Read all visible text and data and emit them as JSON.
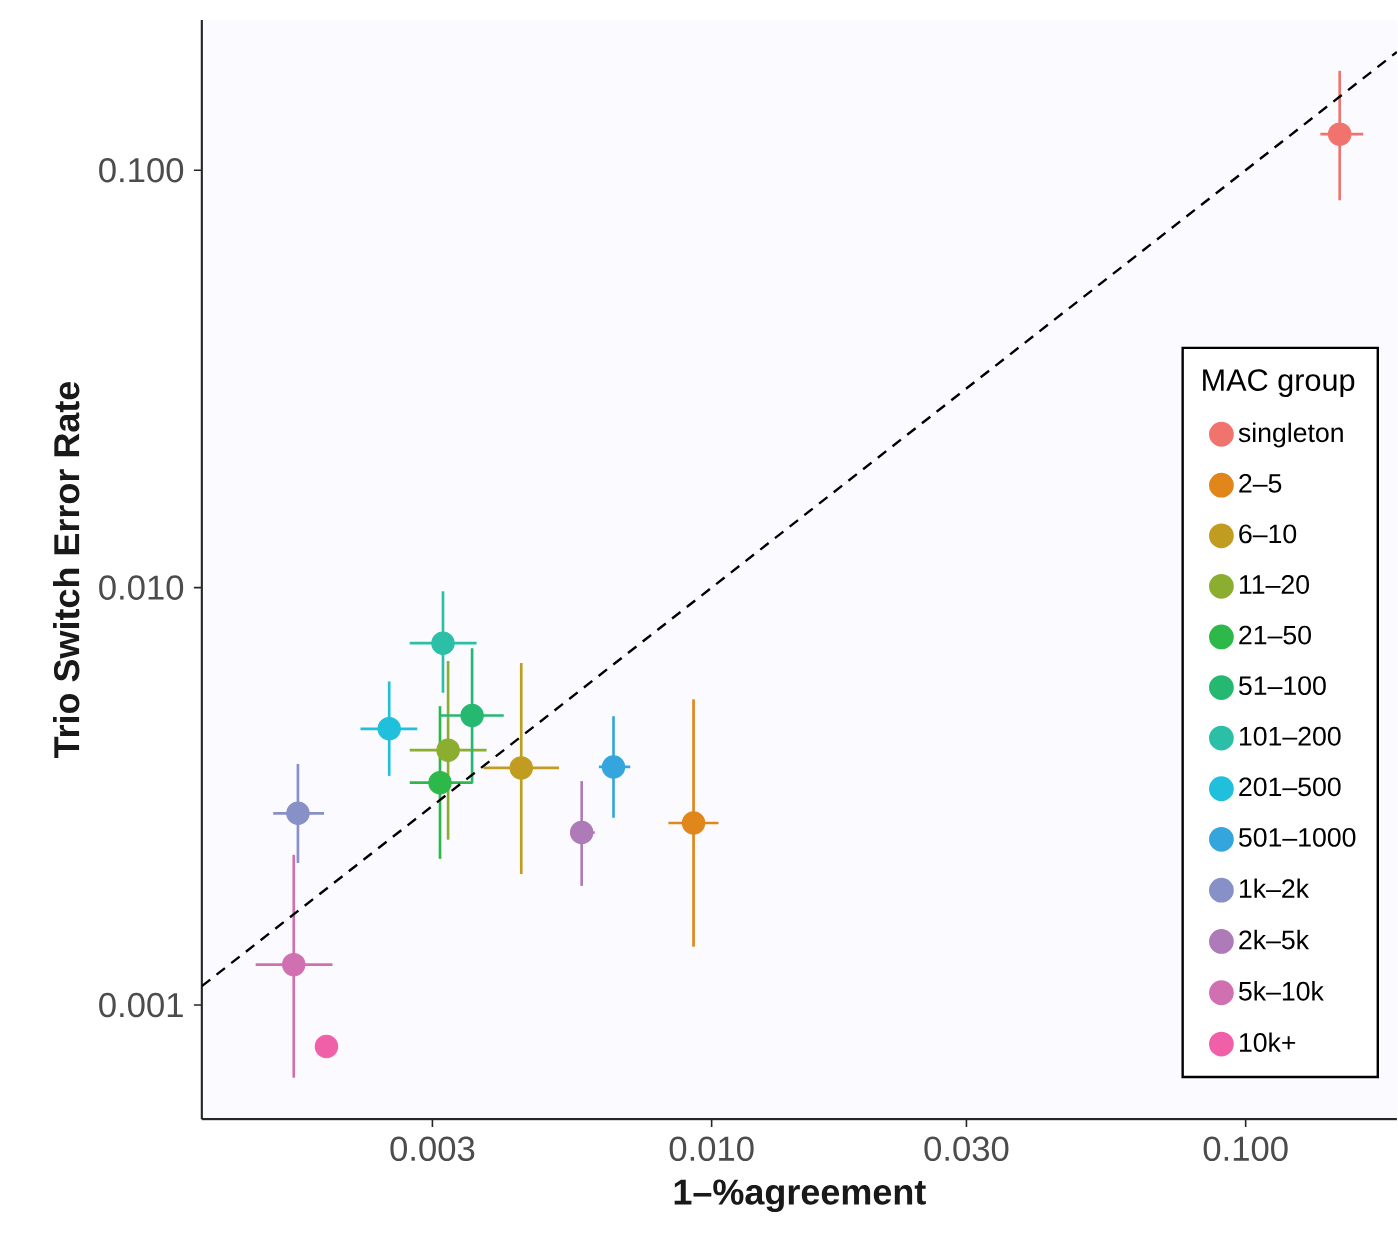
{
  "chart_data": {
    "type": "scatter",
    "xlabel": "1–%agreement",
    "ylabel": "Trio Switch Error Rate",
    "legend_title": "MAC group",
    "legend": "right",
    "log": "xy",
    "grid": false,
    "marker": "circle",
    "xlim": [
      0.00111,
      0.192
    ],
    "ylim": [
      0.000533,
      0.229
    ],
    "xticks": [
      {
        "value": 0.003,
        "label": "0.003"
      },
      {
        "value": 0.01,
        "label": "0.010"
      },
      {
        "value": 0.03,
        "label": "0.030"
      },
      {
        "value": 0.1,
        "label": "0.100"
      }
    ],
    "yticks": [
      {
        "value": 0.001,
        "label": "0.001"
      },
      {
        "value": 0.01,
        "label": "0.010"
      },
      {
        "value": 0.1,
        "label": "0.100"
      }
    ],
    "series": [
      {
        "name": "singleton",
        "color": "#f0746d",
        "x": [
          0.15
        ],
        "values": [
          0.122
        ],
        "errors": [
          [
            0.0847,
            0.173
          ]
        ],
        "xerrors": [
          [
            0.138,
            0.166
          ]
        ]
      },
      {
        "name": "2–5",
        "color": "#e0861a",
        "x": [
          0.00925
        ],
        "values": [
          0.00273
        ],
        "errors": [
          [
            0.00138,
            0.0054
          ]
        ],
        "xerrors": [
          [
            0.0083,
            0.0103
          ]
        ]
      },
      {
        "name": "6–10",
        "color": "#c09c20",
        "x": [
          0.0044
        ],
        "values": [
          0.0037
        ],
        "errors": [
          [
            0.00206,
            0.0066
          ]
        ],
        "xerrors": [
          [
            0.00374,
            0.00518
          ]
        ]
      },
      {
        "name": "11–20",
        "color": "#8cae30",
        "x": [
          0.00321
        ],
        "values": [
          0.00408
        ],
        "errors": [
          [
            0.00249,
            0.00667
          ]
        ],
        "xerrors": [
          [
            0.00272,
            0.00379
          ]
        ]
      },
      {
        "name": "21–50",
        "color": "#2db84a",
        "x": [
          0.0031
        ],
        "values": [
          0.00341
        ],
        "errors": [
          [
            0.00224,
            0.0052
          ]
        ],
        "xerrors": [
          [
            0.00272,
            0.00357
          ]
        ]
      },
      {
        "name": "51–100",
        "color": "#25b870",
        "x": [
          0.00356
        ],
        "values": [
          0.00494
        ],
        "errors": [
          [
            0.00341,
            0.00716
          ]
        ],
        "xerrors": [
          [
            0.00309,
            0.00408
          ]
        ]
      },
      {
        "name": "101–200",
        "color": "#2cbfa8",
        "x": [
          0.00314
        ],
        "values": [
          0.00736
        ],
        "errors": [
          [
            0.0056,
            0.0098
          ]
        ],
        "xerrors": [
          [
            0.00272,
            0.00363
          ]
        ]
      },
      {
        "name": "201–500",
        "color": "#20c0dc",
        "x": [
          0.00249
        ],
        "values": [
          0.00459
        ],
        "errors": [
          [
            0.00354,
            0.00596
          ]
        ],
        "xerrors": [
          [
            0.0022,
            0.00281
          ]
        ]
      },
      {
        "name": "501–1000",
        "color": "#35a6dd",
        "x": [
          0.00655
        ],
        "values": [
          0.00372
        ],
        "errors": [
          [
            0.00281,
            0.00492
          ]
        ],
        "xerrors": [
          [
            0.00615,
            0.00704
          ]
        ]
      },
      {
        "name": "1k–2k",
        "color": "#8890c8",
        "x": [
          0.00168
        ],
        "values": [
          0.00288
        ],
        "errors": [
          [
            0.00219,
            0.00378
          ]
        ],
        "xerrors": [
          [
            0.00151,
            0.00188
          ]
        ]
      },
      {
        "name": "2k–5k",
        "color": "#ae7ab8",
        "x": [
          0.00571
        ],
        "values": [
          0.00259
        ],
        "errors": [
          [
            0.00193,
            0.00344
          ]
        ],
        "xerrors": [
          [
            0.00543,
            0.00604
          ]
        ]
      },
      {
        "name": "5k–10k",
        "color": "#d070b0",
        "x": [
          0.00165
        ],
        "values": [
          0.00125
        ],
        "errors": [
          [
            0.00067,
            0.00229
          ]
        ],
        "xerrors": [
          [
            0.0014,
            0.00195
          ]
        ]
      },
      {
        "name": "10k+",
        "color": "#f060a8",
        "x": [
          0.0019
        ],
        "values": [
          0.000796
        ]
      },
      {
        "type": "line",
        "color": "#000000",
        "line_style": "dashed",
        "marker": "none",
        "x": [
          0.00111,
          0.192
        ],
        "values": [
          0.00111,
          0.192
        ]
      }
    ]
  }
}
